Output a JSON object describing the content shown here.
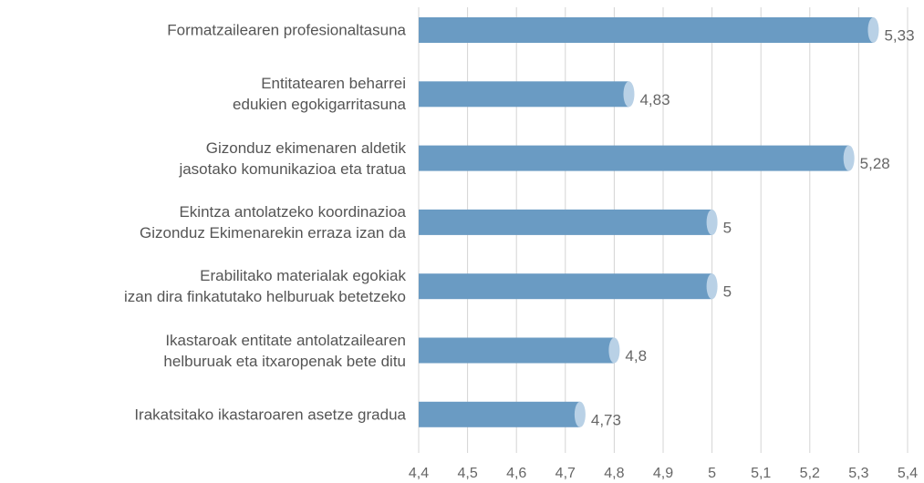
{
  "chart_data": {
    "type": "bar",
    "orientation": "horizontal",
    "categories": [
      "Formatzailearen profesionaltasuna",
      "Entitatearen beharrei\nedukien egokigarritasuna",
      "Gizonduz ekimenaren aldetik\njasotako komunikazioa eta tratua",
      "Ekintza antolatzeko koordinazioa\nGizonduz Ekimenarekin erraza izan da",
      "Erabilitako materialak egokiak\nizan dira finkatutako helburuak betetzeko",
      "Ikastaroak entitate antolatzailearen\nhelburuak eta itxaropenak bete ditu",
      "Irakatsitako ikastaroaren asetze gradua"
    ],
    "values": [
      5.33,
      4.83,
      5.28,
      5,
      5,
      4.8,
      4.73
    ],
    "value_labels": [
      "5,33",
      "4,83",
      "5,28",
      "5",
      "5",
      "4,8",
      "4,73"
    ],
    "color": "#6a9bc3",
    "xlim": [
      4.4,
      5.4
    ],
    "xticks": [
      {
        "value": 4.4,
        "label": "4,4"
      },
      {
        "value": 4.5,
        "label": "4,5"
      },
      {
        "value": 4.6,
        "label": "4,6"
      },
      {
        "value": 4.7,
        "label": "4,7"
      },
      {
        "value": 4.8,
        "label": "4,8"
      },
      {
        "value": 4.9,
        "label": "4,9"
      },
      {
        "value": 5,
        "label": "5"
      },
      {
        "value": 5.1,
        "label": "5,1"
      },
      {
        "value": 5.2,
        "label": "5,2"
      },
      {
        "value": 5.3,
        "label": "5,3"
      },
      {
        "value": 5.4,
        "label": "5,4"
      }
    ],
    "grid": true
  }
}
